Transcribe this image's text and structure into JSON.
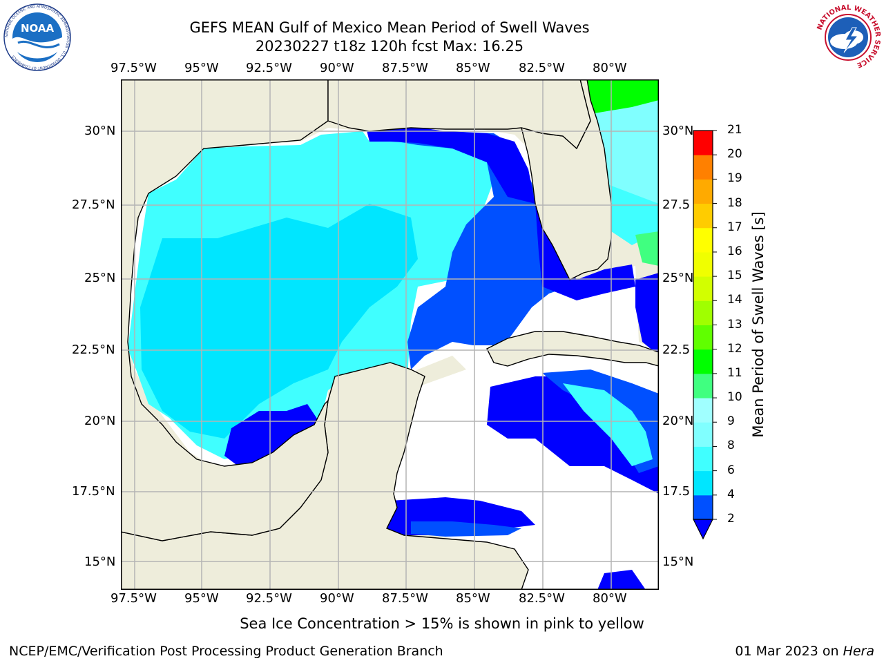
{
  "header": {
    "title_line1": "GEFS MEAN Gulf of Mexico Mean Period of Swell Waves",
    "title_line2": "20230227 t18z 120h fcst   Max: 16.25"
  },
  "logos": {
    "noaa_text": "NOAA",
    "noaa_ring": "NATIONAL OCEANIC AND ATMOSPHERIC ADMINISTRATION · U.S. DEPARTMENT OF COMMERCE",
    "nws_ring": "NATIONAL WEATHER SERVICE"
  },
  "map": {
    "lon_ticks": [
      "97.5°W",
      "95°W",
      "92.5°W",
      "90°W",
      "87.5°W",
      "85°W",
      "82.5°W",
      "80°W"
    ],
    "lat_ticks_left": [
      "30°N",
      "27.5°N",
      "25°N",
      "22.5°N",
      "20°N",
      "17.5°N",
      "15°N"
    ],
    "lat_ticks_right": [
      "30°N",
      "27.5",
      "25°N",
      "22.5",
      "20°N",
      "17.5",
      "15°N"
    ],
    "colors": {
      "land": "#eeeddb",
      "grid": "#b4b4b4",
      "coast": "#000000"
    }
  },
  "colorbar": {
    "label": "Mean Period of Swell Waves [s]",
    "tick_labels": [
      "2",
      "4",
      "6",
      "8",
      "9",
      "10",
      "11",
      "12",
      "13",
      "14",
      "15",
      "16",
      "17",
      "18",
      "19",
      "20",
      "21"
    ],
    "levels": [
      2,
      4,
      6,
      8,
      9,
      10,
      11,
      12,
      13,
      14,
      15,
      16,
      17,
      18,
      19,
      20,
      21
    ],
    "colors": [
      "#0050ff",
      "#00e6ff",
      "#40ffff",
      "#80ffff",
      "#a0ffff",
      "#40ff80",
      "#00ff00",
      "#60ff00",
      "#a0ff00",
      "#d2ff00",
      "#f0ff00",
      "#ffff00",
      "#ffcc00",
      "#ffaa00",
      "#ff8000",
      "#ff5000",
      "#ff2000",
      "#ff0000"
    ],
    "extend_min_color": "#0000ff"
  },
  "caption": "Sea Ice Concentration > 15% is shown in pink to yellow",
  "footer": {
    "left": "NCEP/EMC/Verification Post Processing Product Generation Branch",
    "right_date": "01 Mar 2023 on ",
    "right_machine": "Hera"
  }
}
